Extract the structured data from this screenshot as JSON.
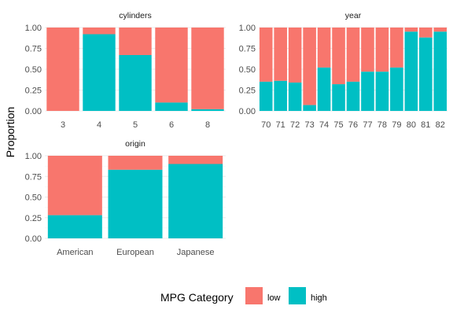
{
  "chart_data": {
    "type": "bar",
    "stacked": true,
    "ylabel": "Proportion",
    "ylim": [
      0,
      1
    ],
    "yticks": [
      "0.00",
      "0.25",
      "0.50",
      "0.75",
      "1.00"
    ],
    "grid": true,
    "legend": {
      "title": "MPG Category",
      "placement": "bottom",
      "entries": [
        {
          "name": "low",
          "color": "#F8766D"
        },
        {
          "name": "high",
          "color": "#00BFC4"
        }
      ]
    },
    "panels": [
      {
        "title": "cylinders",
        "categories": [
          "3",
          "4",
          "5",
          "6",
          "8"
        ],
        "series": [
          {
            "name": "high",
            "values": [
              0.0,
              0.92,
              0.67,
              0.1,
              0.02
            ]
          },
          {
            "name": "low",
            "values": [
              1.0,
              0.08,
              0.33,
              0.9,
              0.98
            ]
          }
        ]
      },
      {
        "title": "year",
        "categories": [
          "70",
          "71",
          "72",
          "73",
          "74",
          "75",
          "76",
          "77",
          "78",
          "79",
          "80",
          "81",
          "82"
        ],
        "series": [
          {
            "name": "high",
            "values": [
              0.35,
              0.36,
              0.34,
              0.07,
              0.52,
              0.32,
              0.35,
              0.47,
              0.47,
              0.52,
              0.95,
              0.88,
              0.95
            ]
          },
          {
            "name": "low",
            "values": [
              0.65,
              0.64,
              0.66,
              0.93,
              0.48,
              0.68,
              0.65,
              0.53,
              0.53,
              0.48,
              0.05,
              0.12,
              0.05
            ]
          }
        ]
      },
      {
        "title": "origin",
        "categories": [
          "American",
          "European",
          "Japanese"
        ],
        "series": [
          {
            "name": "high",
            "values": [
              0.28,
              0.83,
              0.9
            ]
          },
          {
            "name": "low",
            "values": [
              0.72,
              0.17,
              0.1
            ]
          }
        ]
      }
    ]
  }
}
